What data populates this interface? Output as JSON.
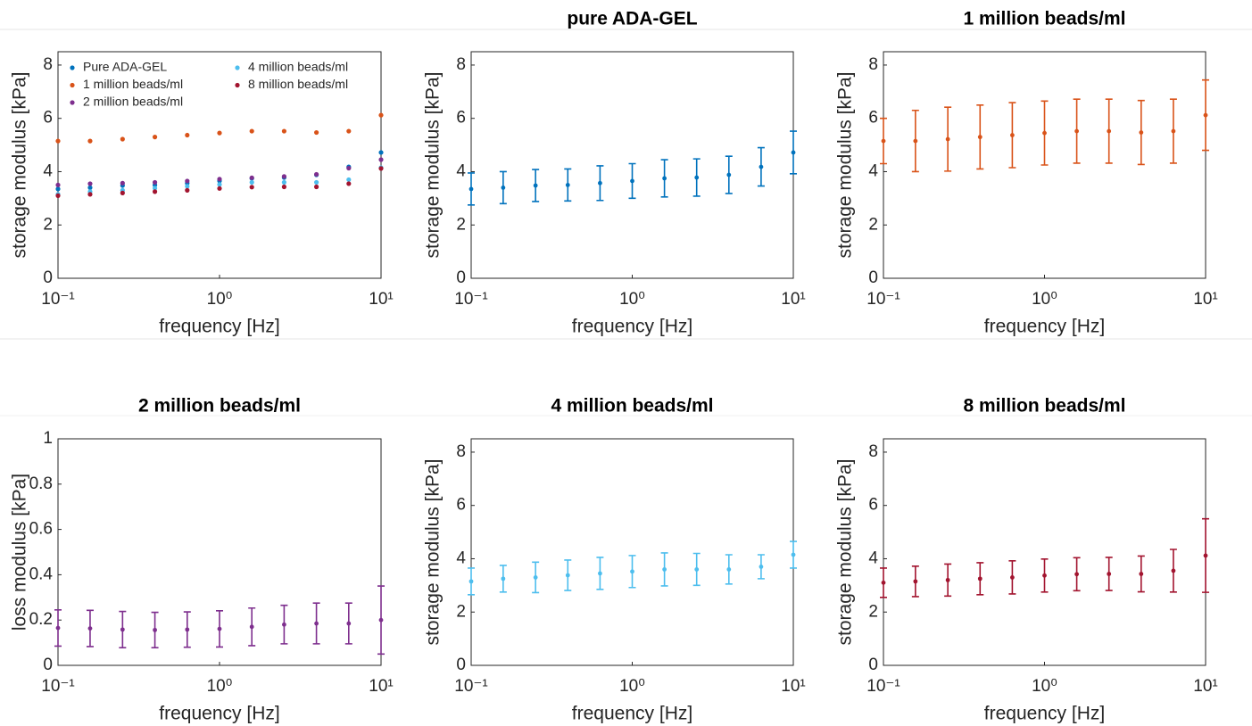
{
  "chart_data": [
    {
      "type": "scatter",
      "xlabel": "frequency [Hz]",
      "ylabel": "storage modulus [kPa]",
      "log_x": true,
      "box": true,
      "legend": "northwest",
      "x": [
        0.1,
        0.158,
        0.251,
        0.398,
        0.631,
        1,
        1.585,
        2.512,
        3.981,
        6.31,
        10
      ],
      "xlim": [
        0.1,
        10
      ],
      "xticks": [
        {
          "value": 0.1,
          "label": "10⁻¹"
        },
        {
          "value": 1,
          "label": "10⁰"
        },
        {
          "value": 10,
          "label": "10¹"
        }
      ],
      "ylim": [
        0,
        8.5
      ],
      "yticks": [
        0,
        2,
        4,
        6,
        8
      ],
      "series": [
        {
          "name": "Pure ADA-GEL",
          "color": "#0072bd",
          "values": [
            3.35,
            3.4,
            3.48,
            3.5,
            3.57,
            3.65,
            3.75,
            3.78,
            3.88,
            4.18,
            4.72
          ]
        },
        {
          "name": "1 million beads/ml",
          "color": "#d95319",
          "values": [
            5.15,
            5.15,
            5.22,
            5.3,
            5.37,
            5.45,
            5.52,
            5.52,
            5.47,
            5.52,
            6.12
          ]
        },
        {
          "name": "2 million beads/ml",
          "color": "#7e2f8e",
          "values": [
            3.5,
            3.55,
            3.57,
            3.6,
            3.65,
            3.72,
            3.77,
            3.82,
            3.9,
            4.13,
            4.45
          ]
        },
        {
          "name": "4 million beads/ml",
          "color": "#4dbeee",
          "values": [
            3.15,
            3.25,
            3.3,
            3.38,
            3.45,
            3.52,
            3.6,
            3.6,
            3.6,
            3.7,
            4.15
          ]
        },
        {
          "name": "8 million beads/ml",
          "color": "#a2142f",
          "values": [
            3.1,
            3.15,
            3.2,
            3.25,
            3.3,
            3.37,
            3.42,
            3.43,
            3.43,
            3.55,
            4.12
          ]
        }
      ]
    },
    {
      "type": "errorbar",
      "title": "pure ADA-GEL",
      "xlabel": "frequency [Hz]",
      "ylabel": "storage modulus [kPa]",
      "log_x": true,
      "box": true,
      "x": [
        0.1,
        0.158,
        0.251,
        0.398,
        0.631,
        1,
        1.585,
        2.512,
        3.981,
        6.31,
        10
      ],
      "xlim": [
        0.1,
        10
      ],
      "xticks": [
        {
          "value": 0.1,
          "label": "10⁻¹"
        },
        {
          "value": 1,
          "label": "10⁰"
        },
        {
          "value": 10,
          "label": "10¹"
        }
      ],
      "ylim": [
        0,
        8.5
      ],
      "yticks": [
        0,
        2,
        4,
        6,
        8
      ],
      "series": [
        {
          "color": "#0072bd",
          "values": [
            3.35,
            3.4,
            3.48,
            3.5,
            3.57,
            3.65,
            3.75,
            3.78,
            3.88,
            4.18,
            4.72
          ],
          "errors": [
            0.6,
            0.6,
            0.6,
            0.6,
            0.65,
            0.65,
            0.7,
            0.7,
            0.7,
            0.72,
            0.8
          ]
        }
      ]
    },
    {
      "type": "errorbar",
      "title": "1 million beads/ml",
      "xlabel": "frequency [Hz]",
      "ylabel": "storage modulus [kPa]",
      "log_x": true,
      "box": true,
      "x": [
        0.1,
        0.158,
        0.251,
        0.398,
        0.631,
        1,
        1.585,
        2.512,
        3.981,
        6.31,
        10
      ],
      "xlim": [
        0.1,
        10
      ],
      "xticks": [
        {
          "value": 0.1,
          "label": "10⁻¹"
        },
        {
          "value": 1,
          "label": "10⁰"
        },
        {
          "value": 10,
          "label": "10¹"
        }
      ],
      "ylim": [
        0,
        8.5
      ],
      "yticks": [
        0,
        2,
        4,
        6,
        8
      ],
      "series": [
        {
          "color": "#d95319",
          "values": [
            5.15,
            5.15,
            5.22,
            5.3,
            5.37,
            5.45,
            5.52,
            5.52,
            5.47,
            5.52,
            6.12
          ],
          "errors": [
            0.85,
            1.15,
            1.2,
            1.2,
            1.22,
            1.2,
            1.2,
            1.2,
            1.2,
            1.2,
            1.32
          ]
        }
      ]
    },
    {
      "type": "errorbar",
      "title": "2 million beads/ml",
      "xlabel": "frequency [Hz]",
      "ylabel": "loss modulus [kPa]",
      "log_x": true,
      "box": true,
      "x": [
        0.1,
        0.158,
        0.251,
        0.398,
        0.631,
        1,
        1.585,
        2.512,
        3.981,
        6.31,
        10
      ],
      "xlim": [
        0.1,
        10
      ],
      "xticks": [
        {
          "value": 0.1,
          "label": "10⁻¹"
        },
        {
          "value": 1,
          "label": "10⁰"
        },
        {
          "value": 10,
          "label": "10¹"
        }
      ],
      "ylim": [
        0,
        1
      ],
      "yticks": [
        0,
        0.2,
        0.4,
        0.6,
        0.8,
        1
      ],
      "series": [
        {
          "color": "#7e2f8e",
          "values": [
            0.165,
            0.163,
            0.158,
            0.156,
            0.158,
            0.161,
            0.17,
            0.18,
            0.185,
            0.185,
            0.2
          ],
          "errors": [
            0.08,
            0.08,
            0.08,
            0.078,
            0.078,
            0.08,
            0.083,
            0.085,
            0.09,
            0.09,
            0.15
          ]
        }
      ]
    },
    {
      "type": "errorbar",
      "title": "4 million beads/ml",
      "xlabel": "frequency [Hz]",
      "ylabel": "storage modulus [kPa]",
      "log_x": true,
      "box": true,
      "x": [
        0.1,
        0.158,
        0.251,
        0.398,
        0.631,
        1,
        1.585,
        2.512,
        3.981,
        6.31,
        10
      ],
      "xlim": [
        0.1,
        10
      ],
      "xticks": [
        {
          "value": 0.1,
          "label": "10⁻¹"
        },
        {
          "value": 1,
          "label": "10⁰"
        },
        {
          "value": 10,
          "label": "10¹"
        }
      ],
      "ylim": [
        0,
        8.5
      ],
      "yticks": [
        0,
        2,
        4,
        6,
        8
      ],
      "series": [
        {
          "color": "#4dbeee",
          "values": [
            3.15,
            3.25,
            3.3,
            3.38,
            3.45,
            3.52,
            3.6,
            3.6,
            3.6,
            3.7,
            4.15
          ],
          "errors": [
            0.5,
            0.5,
            0.57,
            0.57,
            0.6,
            0.6,
            0.62,
            0.6,
            0.55,
            0.45,
            0.5
          ]
        }
      ]
    },
    {
      "type": "errorbar",
      "title": "8 million beads/ml",
      "xlabel": "frequency [Hz]",
      "ylabel": "storage modulus [kPa]",
      "log_x": true,
      "box": true,
      "x": [
        0.1,
        0.158,
        0.251,
        0.398,
        0.631,
        1,
        1.585,
        2.512,
        3.981,
        6.31,
        10
      ],
      "xlim": [
        0.1,
        10
      ],
      "xticks": [
        {
          "value": 0.1,
          "label": "10⁻¹"
        },
        {
          "value": 1,
          "label": "10⁰"
        },
        {
          "value": 10,
          "label": "10¹"
        }
      ],
      "ylim": [
        0,
        8.5
      ],
      "yticks": [
        0,
        2,
        4,
        6,
        8
      ],
      "series": [
        {
          "color": "#a2142f",
          "values": [
            3.1,
            3.15,
            3.2,
            3.25,
            3.3,
            3.37,
            3.42,
            3.43,
            3.43,
            3.55,
            4.12
          ],
          "errors": [
            0.55,
            0.57,
            0.6,
            0.6,
            0.62,
            0.62,
            0.62,
            0.62,
            0.67,
            0.8,
            1.38
          ]
        }
      ]
    }
  ]
}
